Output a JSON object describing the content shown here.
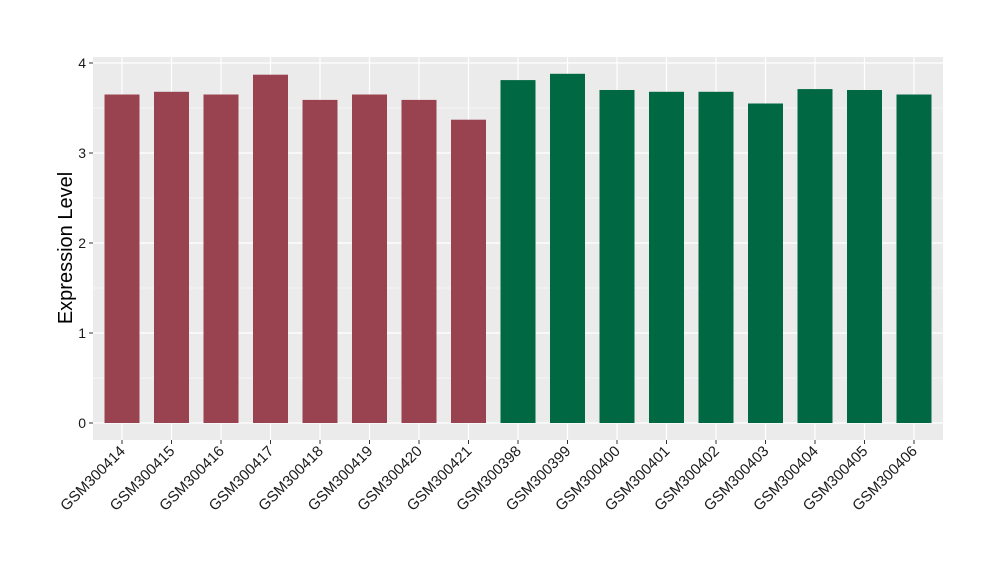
{
  "chart_data": {
    "type": "bar",
    "title": "",
    "xlabel": "",
    "ylabel": "Expression Level",
    "ylim": [
      0,
      4.05
    ],
    "yticks": [
      0,
      1,
      2,
      3,
      4
    ],
    "grid": true,
    "categories": [
      "GSM300414",
      "GSM300415",
      "GSM300416",
      "GSM300417",
      "GSM300418",
      "GSM300419",
      "GSM300420",
      "GSM300421",
      "GSM300398",
      "GSM300399",
      "GSM300400",
      "GSM300401",
      "GSM300402",
      "GSM300403",
      "GSM300404",
      "GSM300405",
      "GSM300406"
    ],
    "values": [
      3.65,
      3.68,
      3.65,
      3.87,
      3.59,
      3.65,
      3.59,
      3.37,
      3.81,
      3.88,
      3.7,
      3.68,
      3.68,
      3.55,
      3.71,
      3.7,
      3.65
    ],
    "groups": [
      "group1",
      "group1",
      "group1",
      "group1",
      "group1",
      "group1",
      "group1",
      "group1",
      "group2",
      "group2",
      "group2",
      "group2",
      "group2",
      "group2",
      "group2",
      "group2",
      "group2"
    ],
    "colors": {
      "group1": "#9a4350",
      "group2": "#006843",
      "panel_background": "#ebebeb",
      "grid_line": "#ffffff",
      "tick_mark": "#333333"
    }
  }
}
